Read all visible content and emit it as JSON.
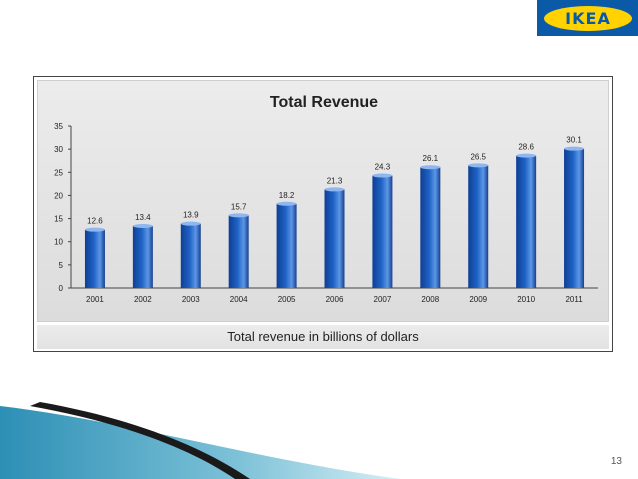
{
  "logo": {
    "text": "IKEA"
  },
  "chart_data": {
    "type": "bar",
    "title": "Total Revenue",
    "categories": [
      "2001",
      "2002",
      "2003",
      "2004",
      "2005",
      "2006",
      "2007",
      "2008",
      "2009",
      "2010",
      "2011"
    ],
    "values": [
      12.6,
      13.4,
      13.9,
      15.7,
      18.2,
      21.3,
      24.3,
      26.1,
      26.5,
      28.6,
      30.1
    ],
    "data_labels": [
      "12.6",
      "13.4",
      "13.9",
      "15.7",
      "18.2",
      "21.3",
      "24.3",
      "26.1",
      "26.5",
      "28.6",
      "30.1"
    ],
    "ylim": [
      0,
      35
    ],
    "yticks": [
      0,
      5,
      10,
      15,
      20,
      25,
      30,
      35
    ],
    "xlabel": "",
    "ylabel": "",
    "caption": "Total revenue in billions of dollars",
    "bar_color": "#1f63c6"
  },
  "page": {
    "number": "13"
  }
}
